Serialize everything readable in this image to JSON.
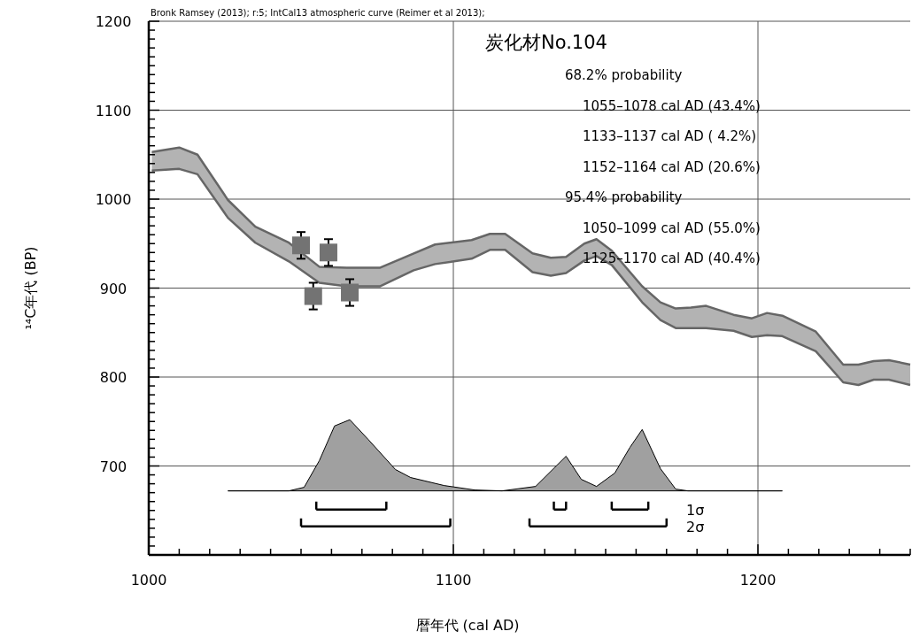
{
  "chart_data": {
    "type": "line",
    "title": "炭化材No.104",
    "xlabel": "暦年代 (cal AD)",
    "ylabel": "¹⁴C年代 (BP)",
    "annotations": [
      "Bronk Ramsey (2013); r:5; IntCal13 atmospheric curve (Reimer et al 2013);",
      "68.2% probability",
      "1055–1078 cal AD (43.4%)",
      "1133–1137 cal AD ( 4.2%)",
      "1152–1164 cal AD (20.6%)",
      "95.4% probability",
      "1050–1099 cal AD (55.0%)",
      "1125–1170 cal AD (40.4%)"
    ],
    "xlim": [
      1000,
      1250
    ],
    "ylim": [
      600,
      1200
    ],
    "xticks": [
      1000,
      {
        "value": 1010,
        "label": null
      },
      {
        "value": 1020,
        "label": null
      },
      {
        "value": 1030,
        "label": null
      },
      {
        "value": 1040,
        "label": null
      },
      {
        "value": 1050,
        "label": null
      },
      {
        "value": 1060,
        "label": null
      },
      {
        "value": 1070,
        "label": null
      },
      {
        "value": 1080,
        "label": null
      },
      {
        "value": 1090,
        "label": null
      },
      1100,
      {
        "value": 1110,
        "label": null
      },
      {
        "value": 1120,
        "label": null
      },
      {
        "value": 1130,
        "label": null
      },
      {
        "value": 1140,
        "label": null
      },
      {
        "value": 1150,
        "label": null
      },
      {
        "value": 1160,
        "label": null
      },
      {
        "value": 1170,
        "label": null
      },
      {
        "value": 1180,
        "label": null
      },
      {
        "value": 1190,
        "label": null
      },
      1200,
      {
        "value": 1210,
        "label": null
      },
      {
        "value": 1220,
        "label": null
      },
      {
        "value": 1230,
        "label": null
      },
      {
        "value": 1240,
        "label": null
      },
      {
        "value": 1250,
        "label": null
      }
    ],
    "yticks": [
      {
        "value": 610,
        "label": null
      },
      {
        "value": 620,
        "label": null
      },
      {
        "value": 630,
        "label": null
      },
      {
        "value": 640,
        "label": null
      },
      {
        "value": 650,
        "label": null
      },
      {
        "value": 660,
        "label": null
      },
      {
        "value": 670,
        "label": null
      },
      {
        "value": 680,
        "label": null
      },
      {
        "value": 690,
        "label": null
      },
      700,
      {
        "value": 710,
        "label": null
      },
      {
        "value": 720,
        "label": null
      },
      {
        "value": 730,
        "label": null
      },
      {
        "value": 740,
        "label": null
      },
      {
        "value": 750,
        "label": null
      },
      {
        "value": 760,
        "label": null
      },
      {
        "value": 770,
        "label": null
      },
      {
        "value": 780,
        "label": null
      },
      {
        "value": 790,
        "label": null
      },
      800,
      {
        "value": 810,
        "label": null
      },
      {
        "value": 820,
        "label": null
      },
      {
        "value": 830,
        "label": null
      },
      {
        "value": 840,
        "label": null
      },
      {
        "value": 850,
        "label": null
      },
      {
        "value": 860,
        "label": null
      },
      {
        "value": 870,
        "label": null
      },
      {
        "value": 880,
        "label": null
      },
      {
        "value": 890,
        "label": null
      },
      900,
      {
        "value": 910,
        "label": null
      },
      {
        "value": 920,
        "label": null
      },
      {
        "value": 930,
        "label": null
      },
      {
        "value": 940,
        "label": null
      },
      {
        "value": 950,
        "label": null
      },
      {
        "value": 960,
        "label": null
      },
      {
        "value": 970,
        "label": null
      },
      {
        "value": 980,
        "label": null
      },
      {
        "value": 990,
        "label": null
      },
      1000,
      {
        "value": 1010,
        "label": null
      },
      {
        "value": 1020,
        "label": null
      },
      {
        "value": 1030,
        "label": null
      },
      {
        "value": 1040,
        "label": null
      },
      {
        "value": 1050,
        "label": null
      },
      {
        "value": 1060,
        "label": null
      },
      {
        "value": 1070,
        "label": null
      },
      {
        "value": 1080,
        "label": null
      },
      {
        "value": 1090,
        "label": null
      },
      1100,
      {
        "value": 1110,
        "label": null
      },
      {
        "value": 1120,
        "label": null
      },
      {
        "value": 1130,
        "label": null
      },
      {
        "value": 1140,
        "label": null
      },
      {
        "value": 1150,
        "label": null
      },
      {
        "value": 1160,
        "label": null
      },
      {
        "value": 1170,
        "label": null
      },
      {
        "value": 1180,
        "label": null
      },
      {
        "value": 1190,
        "label": null
      },
      1200
    ],
    "grid": true,
    "legend": "bottom right",
    "series": [
      {
        "type": "line",
        "color": "#666666",
        "x": [
          1001,
          1010,
          1016,
          1026,
          1035,
          1046,
          1056,
          1065,
          1076,
          1087,
          1094,
          1106,
          1112,
          1117,
          1126,
          1132,
          1137,
          1143,
          1147,
          1152,
          1162,
          1168,
          1173,
          1178,
          1183,
          1192,
          1198,
          1203,
          1208,
          1219,
          1228,
          1233,
          1238,
          1243,
          1250
        ],
        "values": [
          1053,
          1058,
          1050,
          999,
          969,
          951,
          924,
          923,
          923,
          939,
          949,
          954,
          961,
          961,
          939,
          934,
          935,
          950,
          955,
          942,
          902,
          884,
          877,
          878,
          880,
          870,
          866,
          872,
          869,
          851,
          814,
          814,
          818,
          819,
          814
        ],
        "lower": [
          1032,
          1034,
          1028,
          979,
          951,
          930,
          906,
          902,
          902,
          920,
          927,
          933,
          943,
          943,
          918,
          914,
          917,
          931,
          936,
          926,
          884,
          864,
          855,
          855,
          855,
          852,
          845,
          847,
          846,
          829,
          794,
          791,
          797,
          797,
          791
        ],
        "upper": [
          1053,
          1058,
          1050,
          999,
          969,
          951,
          924,
          923,
          923,
          939,
          949,
          954,
          961,
          961,
          939,
          934,
          935,
          950,
          955,
          942,
          902,
          884,
          877,
          878,
          880,
          870,
          866,
          872,
          869,
          851,
          814,
          814,
          818,
          819,
          814
        ]
      },
      {
        "type": "line",
        "color": "#666666",
        "x": [
          1001,
          1010,
          1016,
          1026,
          1035,
          1046,
          1056,
          1065,
          1076,
          1087,
          1094,
          1106,
          1112,
          1117,
          1126,
          1132,
          1137,
          1143,
          1147,
          1152,
          1162,
          1168,
          1173,
          1178,
          1183,
          1192,
          1198,
          1203,
          1208,
          1219,
          1228,
          1233,
          1238,
          1243,
          1250
        ],
        "values": [
          1032,
          1034,
          1028,
          979,
          951,
          930,
          906,
          902,
          902,
          920,
          927,
          933,
          943,
          943,
          918,
          914,
          917,
          931,
          936,
          926,
          884,
          864,
          855,
          855,
          855,
          852,
          845,
          847,
          846,
          829,
          794,
          791,
          797,
          797,
          791
        ]
      },
      {
        "type": "line",
        "color": "#000000",
        "x": [
          1026,
          1046,
          1051,
          1056,
          1061,
          1066,
          1072,
          1081,
          1086,
          1097,
          1107,
          1116,
          1127,
          1137,
          1142,
          1147,
          1153,
          1158,
          1162,
          1168,
          1173,
          1177,
          1208
        ],
        "values": [
          672,
          672,
          676,
          706,
          745,
          752,
          730,
          696,
          687,
          678,
          673,
          672,
          677,
          711,
          685,
          677,
          692,
          721,
          741,
          697,
          674,
          672,
          672
        ],
        "lower": [
          672,
          672,
          672,
          672,
          672,
          672,
          672,
          672,
          672,
          672,
          672,
          672,
          672,
          672,
          672,
          672,
          672,
          672,
          672,
          672,
          672,
          672,
          672
        ],
        "upper": [
          672,
          672,
          676,
          706,
          745,
          752,
          730,
          696,
          687,
          678,
          673,
          672,
          677,
          711,
          685,
          677,
          692,
          721,
          741,
          697,
          674,
          672,
          672
        ]
      },
      {
        "color": "#000000",
        "x": [
          1026,
          1208
        ],
        "values": [
          672,
          672
        ]
      },
      {
        "type": "scatter",
        "color": "#737373",
        "marker": "square",
        "x": [
          1050,
          1054,
          1059,
          1066
        ],
        "values": [
          948,
          891,
          940,
          895
        ],
        "errors": [
          15,
          15,
          15,
          15
        ]
      },
      {
        "name": "1σ",
        "color": "#000000",
        "x": [
          1055,
          1078,
          1100,
          1133,
          1137,
          1145,
          1152,
          1164
        ],
        "values": [
          651,
          651,
          null,
          651,
          651,
          null,
          651,
          651
        ]
      },
      {
        "name": "2σ",
        "color": "#000000",
        "x": [
          1050,
          1099,
          1110,
          1125,
          1170
        ],
        "values": [
          632,
          632,
          null,
          632,
          632
        ]
      }
    ]
  }
}
